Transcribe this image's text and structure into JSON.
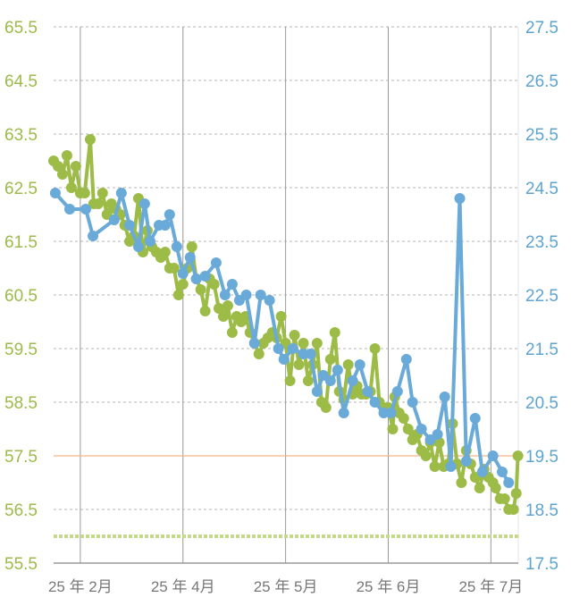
{
  "chart_data": {
    "type": "line",
    "title": "",
    "xlabel": "",
    "xlim": [
      -7.8,
      128
    ],
    "x_ticks": [
      0,
      30,
      60,
      90,
      120
    ],
    "x_tick_labels": [
      "25 年 2月",
      "25 年 4月",
      "25 年 5月",
      "25 年 6月",
      "25 年 7月"
    ],
    "y_left": {
      "lim": [
        55.5,
        65.5
      ],
      "ticks": [
        "55.5",
        "56.5",
        "57.5",
        "58.5",
        "59.5",
        "60.5",
        "61.5",
        "62.5",
        "63.5",
        "64.5",
        "65.5"
      ],
      "color": "#9dba4a"
    },
    "y_right": {
      "lim": [
        17.5,
        27.5
      ],
      "ticks": [
        "17.5",
        "18.5",
        "19.5",
        "20.5",
        "21.5",
        "22.5",
        "23.5",
        "24.5",
        "25.5",
        "26.5",
        "27.5"
      ],
      "color": "#5fa3d0"
    },
    "grid": true,
    "reference_lines": [
      {
        "axis": "left",
        "value": 57.5,
        "color": "#f2b38a",
        "style": "solid"
      },
      {
        "axis": "left",
        "value": 56.0,
        "color": "#c5d98a",
        "style": "dotted"
      }
    ],
    "series": [
      {
        "name": "green",
        "axis": "left",
        "color": "#9cbc47",
        "x": [
          -7.8,
          -6.5,
          -5.2,
          -3.9,
          -2.6,
          -1.3,
          0,
          1.3,
          2.9,
          3.9,
          5.2,
          6.5,
          7.8,
          9.1,
          10.4,
          11.7,
          13.0,
          14.4,
          15.7,
          17.0,
          18.3,
          19.6,
          20.9,
          22.2,
          23.5,
          24.8,
          26.1,
          27.4,
          28.7,
          30.0,
          31.3,
          32.6,
          33.9,
          35.2,
          36.5,
          37.8,
          39.1,
          40.5,
          41.8,
          43.1,
          44.4,
          45.7,
          47.0,
          48.3,
          49.6,
          50.9,
          52.2,
          53.5,
          54.8,
          56.1,
          57.4,
          58.7,
          60.0,
          61.3,
          62.6,
          63.9,
          65.2,
          66.6,
          67.9,
          69.2,
          70.5,
          71.8,
          73.1,
          74.4,
          75.7,
          77.0,
          78.3,
          79.6,
          80.9,
          82.2,
          83.5,
          84.8,
          86.1,
          87.4,
          88.7,
          90.0,
          91.3,
          91.9,
          93.2,
          94.5,
          95.8,
          97.1,
          98.4,
          99.7,
          101.0,
          102.3,
          103.6,
          104.9,
          106.2,
          107.5,
          108.8,
          110.1,
          111.4,
          112.8,
          114.1,
          115.4,
          116.7,
          118.0,
          119.3,
          120.6,
          121.4,
          122.7,
          124.0,
          125.2,
          126.6,
          127.4,
          127.9
        ],
        "y": [
          63.0,
          62.9,
          62.75,
          63.1,
          62.5,
          62.9,
          62.4,
          62.4,
          63.4,
          62.2,
          62.2,
          62.4,
          62.0,
          62.2,
          62.1,
          62.0,
          61.8,
          61.5,
          61.6,
          62.3,
          61.3,
          61.7,
          61.4,
          61.3,
          61.2,
          61.3,
          61.0,
          61.0,
          60.5,
          60.7,
          61.0,
          61.4,
          60.8,
          60.6,
          60.2,
          60.8,
          60.7,
          60.25,
          60.1,
          60.3,
          59.8,
          60.1,
          60.0,
          60.1,
          59.8,
          59.6,
          59.4,
          59.6,
          59.7,
          59.8,
          59.7,
          60.1,
          59.6,
          58.9,
          59.75,
          59.2,
          59.6,
          58.9,
          59.2,
          59.6,
          58.5,
          58.4,
          59.3,
          59.8,
          58.7,
          58.55,
          59.2,
          58.65,
          58.8,
          58.65,
          58.65,
          58.7,
          59.5,
          58.5,
          58.4,
          58.4,
          58.0,
          58.6,
          58.3,
          58.2,
          58.0,
          57.8,
          57.9,
          57.6,
          57.5,
          57.75,
          57.3,
          57.75,
          57.3,
          57.35,
          58.1,
          57.35,
          57.0,
          57.6,
          57.35,
          57.1,
          56.9,
          57.25,
          57.1,
          57.0,
          56.9,
          56.7,
          56.7,
          56.5,
          56.5,
          56.8,
          57.5
        ]
      },
      {
        "name": "blue",
        "axis": "right",
        "color": "#6aaad8",
        "x": [
          -7.3,
          -3.1,
          1.6,
          3.7,
          9.9,
          12.0,
          14.4,
          17.0,
          18.8,
          20.4,
          23.0,
          24.8,
          26.1,
          28.2,
          30.0,
          32.1,
          33.9,
          36.5,
          39.7,
          42.3,
          44.4,
          46.5,
          48.5,
          50.9,
          52.7,
          55.3,
          57.9,
          59.5,
          62.1,
          65.2,
          67.3,
          69.2,
          71.0,
          73.1,
          75.2,
          77.0,
          79.6,
          81.7,
          84.0,
          86.1,
          88.7,
          90.8,
          92.7,
          95.3,
          97.1,
          99.7,
          102.3,
          104.4,
          106.5,
          108.3,
          110.9,
          112.8,
          115.4,
          117.5,
          120.6,
          123.3,
          125.2
        ],
        "y": [
          24.4,
          24.1,
          24.1,
          23.6,
          23.9,
          24.4,
          23.8,
          23.4,
          24.2,
          23.5,
          23.8,
          23.8,
          24.0,
          23.4,
          22.9,
          23.2,
          22.8,
          22.85,
          23.1,
          22.5,
          22.7,
          22.4,
          22.5,
          21.6,
          22.5,
          22.4,
          21.5,
          21.3,
          21.5,
          21.4,
          21.4,
          20.7,
          21.0,
          20.9,
          21.1,
          20.3,
          20.9,
          21.2,
          20.7,
          20.5,
          20.3,
          20.3,
          20.7,
          21.3,
          20.5,
          20.0,
          19.8,
          19.9,
          20.6,
          19.3,
          24.3,
          19.4,
          20.2,
          19.2,
          19.5,
          19.2,
          19.0
        ]
      }
    ]
  }
}
